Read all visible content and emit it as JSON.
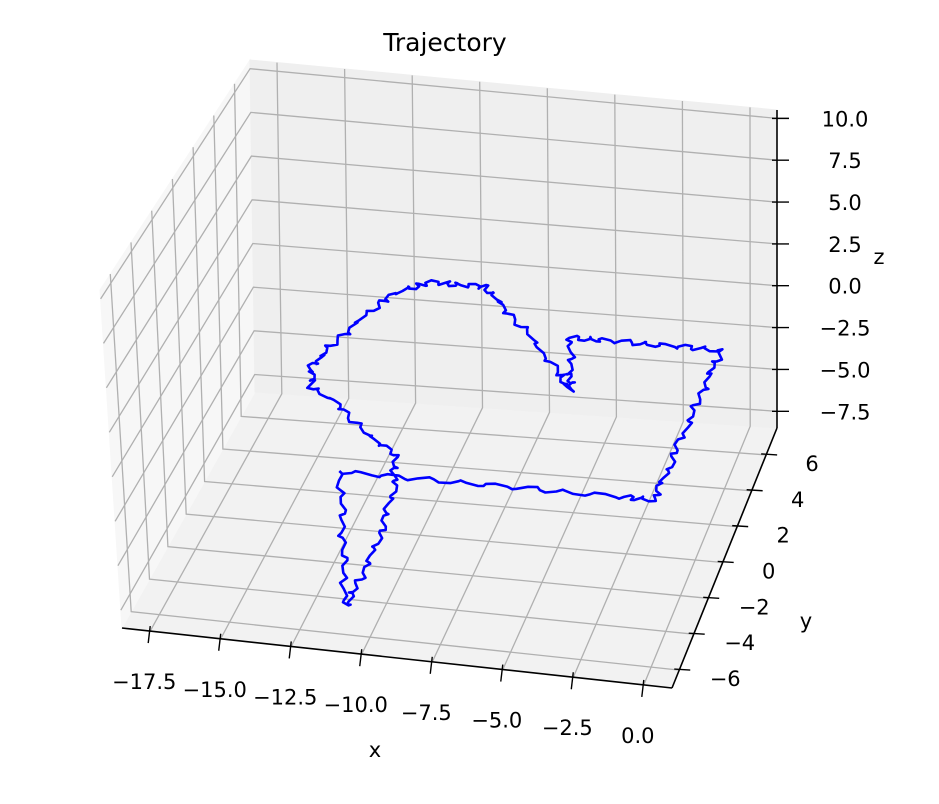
{
  "chart_data": {
    "type": "line3d",
    "title": "Trajectory",
    "xlabel": "x",
    "ylabel": "y",
    "zlabel": "z",
    "xlim": [
      -18.5,
      1.0
    ],
    "ylim": [
      -7.0,
      7.5
    ],
    "zlim": [
      -8.5,
      10.5
    ],
    "x_ticks": [
      -17.5,
      -15.0,
      -12.5,
      -10.0,
      -7.5,
      -5.0,
      -2.5,
      0.0
    ],
    "x_tick_labels": [
      "−17.5",
      "−15.0",
      "−12.5",
      "−10.0",
      "−7.5",
      "−5.0",
      "−2.5",
      "0.0"
    ],
    "y_ticks": [
      -6,
      -4,
      -2,
      0,
      2,
      4,
      6
    ],
    "y_tick_labels": [
      "−6",
      "−4",
      "−2",
      "0",
      "2",
      "4",
      "6"
    ],
    "z_ticks": [
      -7.5,
      -5.0,
      -2.5,
      0.0,
      2.5,
      5.0,
      7.5,
      10.0
    ],
    "z_tick_labels": [
      "−7.5",
      "−5.0",
      "−2.5",
      "0.0",
      "2.5",
      "5.0",
      "7.5",
      "10.0"
    ],
    "grid": true,
    "series": [
      {
        "color": "#0000ff",
        "points": [
          [
            -11.0,
            -5.5,
            0.0
          ],
          [
            -8.5,
            -5.5,
            0.0
          ],
          [
            -6.0,
            -5.5,
            0.0
          ],
          [
            -3.5,
            -5.5,
            0.0
          ],
          [
            -1.0,
            -5.5,
            0.0
          ],
          [
            0.0,
            -5.5,
            0.0
          ],
          [
            0.0,
            -4.0,
            0.0
          ],
          [
            0.0,
            -2.0,
            0.0
          ],
          [
            0.0,
            0.0,
            0.0
          ],
          [
            0.0,
            2.0,
            0.0
          ],
          [
            0.0,
            3.5,
            0.0
          ],
          [
            -1.5,
            3.5,
            0.0
          ],
          [
            -3.0,
            3.5,
            0.0
          ],
          [
            -4.5,
            3.5,
            0.0
          ],
          [
            -5.5,
            3.5,
            0.0
          ],
          [
            -5.5,
            3.5,
            -2.0
          ],
          [
            -5.5,
            3.5,
            -3.0
          ],
          [
            -6.0,
            3.5,
            -2.0
          ],
          [
            -7.0,
            3.5,
            0.0
          ],
          [
            -8.0,
            3.5,
            1.5
          ],
          [
            -8.5,
            3.5,
            2.5
          ],
          [
            -9.5,
            3.5,
            2.5
          ],
          [
            -10.5,
            3.5,
            2.5
          ],
          [
            -11.5,
            3.5,
            2.0
          ],
          [
            -12.5,
            3.5,
            1.0
          ],
          [
            -13.5,
            3.5,
            -0.5
          ],
          [
            -14.5,
            3.5,
            -2.0
          ],
          [
            -15.0,
            3.5,
            -3.0
          ],
          [
            -15.0,
            3.5,
            -4.0
          ],
          [
            -14.0,
            3.5,
            -5.0
          ],
          [
            -13.0,
            3.5,
            -6.5
          ],
          [
            -12.0,
            3.5,
            -7.5
          ],
          [
            -11.5,
            2.0,
            -7.5
          ],
          [
            -11.2,
            0.0,
            -7.5
          ],
          [
            -11.0,
            -2.0,
            -7.5
          ],
          [
            -11.0,
            -4.0,
            -7.5
          ],
          [
            -11.0,
            -5.5,
            -7.5
          ],
          [
            -11.0,
            -5.5,
            -5.0
          ],
          [
            -11.0,
            -5.5,
            -2.5
          ],
          [
            -11.0,
            -5.5,
            0.0
          ]
        ]
      }
    ]
  }
}
